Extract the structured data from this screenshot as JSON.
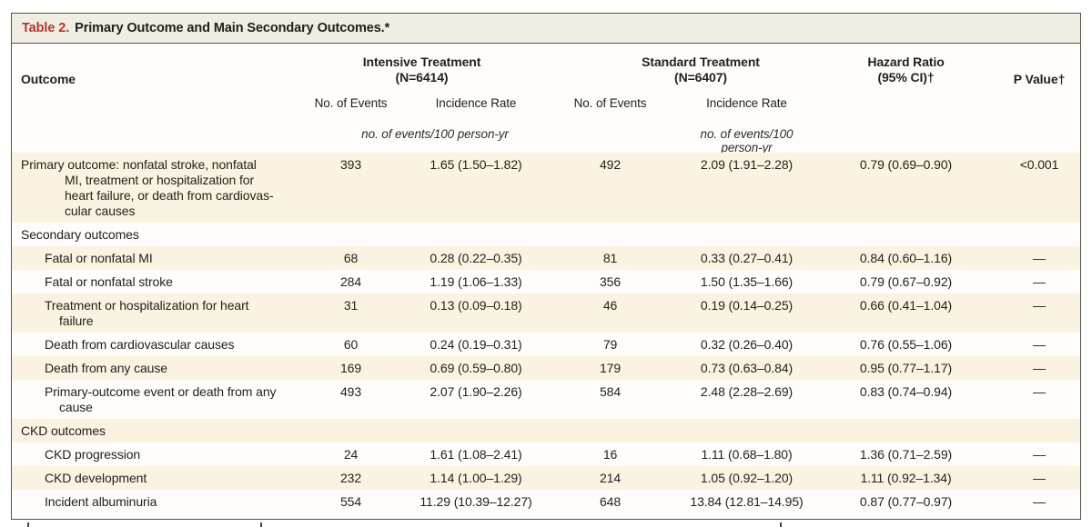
{
  "table": {
    "title": {
      "label": "Table 2.",
      "text": "Primary Outcome and Main Secondary Outcomes.*"
    },
    "colors": {
      "stripe_cream": "#faf3e1",
      "title_bar": "#f0ede3",
      "border": "#56534a",
      "accent_red": "#b4362e"
    },
    "header": {
      "outcome": "Outcome",
      "intensive_group": {
        "line1": "Intensive Treatment",
        "line2": "(N=6414)"
      },
      "standard_group": {
        "line1": "Standard Treatment",
        "line2": "(N=6407)"
      },
      "hazard_ratio": {
        "line1": "Hazard Ratio",
        "line2": "(95% CI)†"
      },
      "p_value": "P Value†",
      "sub": {
        "int_events": "No. of Events",
        "int_rate": "Incidence Rate",
        "std_events": "No. of Events",
        "std_rate": "Incidence Rate"
      },
      "unit_note_intensive": "no. of events/100 person-yr",
      "unit_note_standard": "no. of events/100 person-yr"
    },
    "rows": [
      {
        "label_lines": [
          "Primary outcome: nonfatal stroke, nonfatal",
          "MI, treatment or hospitalization for",
          "heart failure, or death from cardiovas-",
          "cular causes"
        ],
        "indent": 0,
        "shaded": true,
        "int_events": "393",
        "int_rate": "1.65 (1.50–1.82)",
        "std_events": "492",
        "std_rate": "2.09 (1.91–2.28)",
        "hazard_ratio": "0.79 (0.69–0.90)",
        "p_value": "<0.001"
      },
      {
        "label_lines": [
          "Secondary outcomes"
        ],
        "indent": 0,
        "shaded": false,
        "int_events": "",
        "int_rate": "",
        "std_events": "",
        "std_rate": "",
        "hazard_ratio": "",
        "p_value": ""
      },
      {
        "label_lines": [
          "Fatal or nonfatal MI"
        ],
        "indent": 1,
        "shaded": true,
        "int_events": "68",
        "int_rate": "0.28 (0.22–0.35)",
        "std_events": "81",
        "std_rate": "0.33 (0.27–0.41)",
        "hazard_ratio": "0.84 (0.60–1.16)",
        "p_value": "—"
      },
      {
        "label_lines": [
          "Fatal or nonfatal stroke"
        ],
        "indent": 1,
        "shaded": false,
        "int_events": "284",
        "int_rate": "1.19 (1.06–1.33)",
        "std_events": "356",
        "std_rate": "1.50 (1.35–1.66)",
        "hazard_ratio": "0.79 (0.67–0.92)",
        "p_value": "—"
      },
      {
        "label_lines": [
          "Treatment or hospitalization for heart",
          "failure"
        ],
        "indent": 1,
        "shaded": true,
        "int_events": "31",
        "int_rate": "0.13 (0.09–0.18)",
        "std_events": "46",
        "std_rate": "0.19 (0.14–0.25)",
        "hazard_ratio": "0.66 (0.41–1.04)",
        "p_value": "—"
      },
      {
        "label_lines": [
          "Death from cardiovascular causes"
        ],
        "indent": 1,
        "shaded": false,
        "int_events": "60",
        "int_rate": "0.24 (0.19–0.31)",
        "std_events": "79",
        "std_rate": "0.32 (0.26–0.40)",
        "hazard_ratio": "0.76 (0.55–1.06)",
        "p_value": "—"
      },
      {
        "label_lines": [
          "Death from any cause"
        ],
        "indent": 1,
        "shaded": true,
        "int_events": "169",
        "int_rate": "0.69 (0.59–0.80)",
        "std_events": "179",
        "std_rate": "0.73 (0.63–0.84)",
        "hazard_ratio": "0.95 (0.77–1.17)",
        "p_value": "—"
      },
      {
        "label_lines": [
          "Primary-outcome event or death from any",
          "cause"
        ],
        "indent": 1,
        "shaded": false,
        "int_events": "493",
        "int_rate": "2.07 (1.90–2.26)",
        "std_events": "584",
        "std_rate": "2.48 (2.28–2.69)",
        "hazard_ratio": "0.83 (0.74–0.94)",
        "p_value": "—"
      },
      {
        "label_lines": [
          "CKD outcomes"
        ],
        "indent": 0,
        "shaded": true,
        "int_events": "",
        "int_rate": "",
        "std_events": "",
        "std_rate": "",
        "hazard_ratio": "",
        "p_value": ""
      },
      {
        "label_lines": [
          "CKD progression"
        ],
        "indent": 1,
        "shaded": false,
        "int_events": "24",
        "int_rate": "1.61 (1.08–2.41)",
        "std_events": "16",
        "std_rate": "1.11 (0.68–1.80)",
        "hazard_ratio": "1.36 (0.71–2.59)",
        "p_value": "—"
      },
      {
        "label_lines": [
          "CKD development"
        ],
        "indent": 1,
        "shaded": true,
        "int_events": "232",
        "int_rate": "1.14 (1.00–1.29)",
        "std_events": "214",
        "std_rate": "1.05 (0.92–1.20)",
        "hazard_ratio": "1.11 (0.92–1.34)",
        "p_value": "—"
      },
      {
        "label_lines": [
          "Incident albuminuria"
        ],
        "indent": 1,
        "shaded": false,
        "int_events": "554",
        "int_rate": "11.29 (10.39–12.27)",
        "std_events": "648",
        "std_rate": "13.84 (12.81–14.95)",
        "hazard_ratio": "0.87 (0.77–0.97)",
        "p_value": "—"
      }
    ]
  }
}
